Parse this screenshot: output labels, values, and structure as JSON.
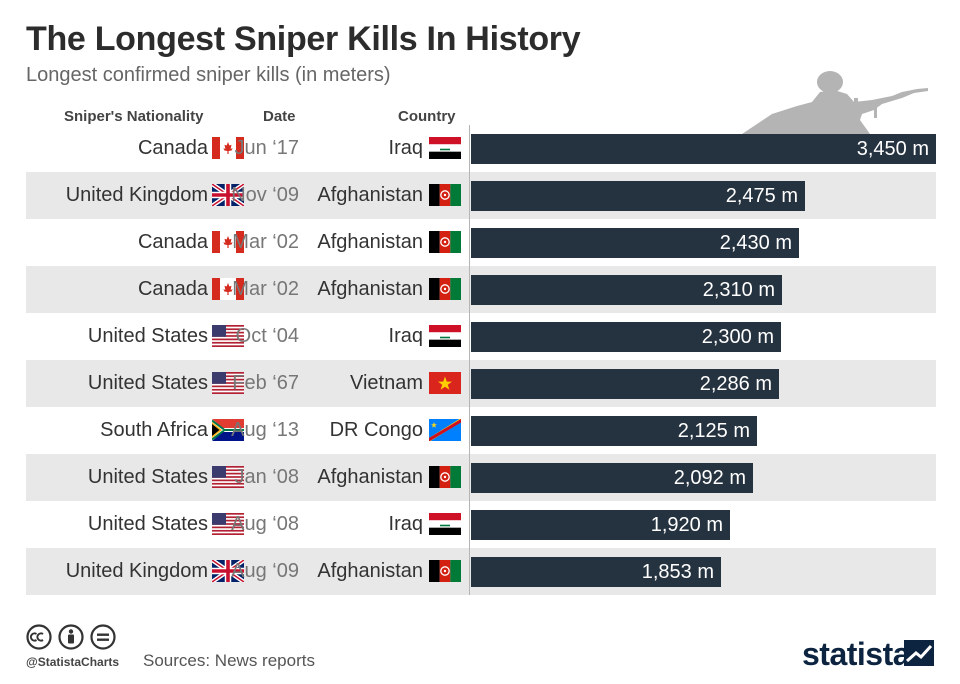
{
  "header": {
    "title": "The Longest Sniper Kills In History",
    "subtitle": "Longest confirmed sniper kills (in meters)"
  },
  "columns": {
    "nationality": "Sniper's Nationality",
    "date": "Date",
    "country": "Country"
  },
  "colors": {
    "bar": "#25323f",
    "row_shade": "#e8e8e8",
    "brand": "#0d2440"
  },
  "chart_data": {
    "type": "bar",
    "orientation": "horizontal",
    "unit": "m",
    "xlim": [
      0,
      3450
    ],
    "grid": false,
    "rows": [
      {
        "nationality": "Canada",
        "nat_flag": "canada-flag",
        "date": "Jun ‘17",
        "country": "Iraq",
        "country_flag": "iraq-flag",
        "value": 3450,
        "label": "3,450 m"
      },
      {
        "nationality": "United Kingdom",
        "nat_flag": "uk-flag",
        "date": "Nov ‘09",
        "country": "Afghanistan",
        "country_flag": "afghanistan-flag",
        "value": 2475,
        "label": "2,475 m"
      },
      {
        "nationality": "Canada",
        "nat_flag": "canada-flag",
        "date": "Mar ‘02",
        "country": "Afghanistan",
        "country_flag": "afghanistan-flag",
        "value": 2430,
        "label": "2,430 m"
      },
      {
        "nationality": "Canada",
        "nat_flag": "canada-flag",
        "date": "Mar ‘02",
        "country": "Afghanistan",
        "country_flag": "afghanistan-flag",
        "value": 2310,
        "label": "2,310 m"
      },
      {
        "nationality": "United States",
        "nat_flag": "usa-flag",
        "date": "Oct ‘04",
        "country": "Iraq",
        "country_flag": "iraq-flag",
        "value": 2300,
        "label": "2,300 m"
      },
      {
        "nationality": "United States",
        "nat_flag": "usa-flag",
        "date": "Feb ‘67",
        "country": "Vietnam",
        "country_flag": "vietnam-flag",
        "value": 2286,
        "label": "2,286 m"
      },
      {
        "nationality": "South Africa",
        "nat_flag": "south-africa-flag",
        "date": "Aug ‘13",
        "country": "DR Congo",
        "country_flag": "dr-congo-flag",
        "value": 2125,
        "label": "2,125 m"
      },
      {
        "nationality": "United States",
        "nat_flag": "usa-flag",
        "date": "Jan ‘08",
        "country": "Afghanistan",
        "country_flag": "afghanistan-flag",
        "value": 2092,
        "label": "2,092 m"
      },
      {
        "nationality": "United States",
        "nat_flag": "usa-flag",
        "date": "Aug ‘08",
        "country": "Iraq",
        "country_flag": "iraq-flag",
        "value": 1920,
        "label": "1,920 m"
      },
      {
        "nationality": "United Kingdom",
        "nat_flag": "uk-flag",
        "date": "Aug ‘09",
        "country": "Afghanistan",
        "country_flag": "afghanistan-flag",
        "value": 1853,
        "label": "1,853 m"
      }
    ]
  },
  "footer": {
    "handle": "@StatistaCharts",
    "source": "Sources: News reports",
    "brand": "statista",
    "icons": [
      "cc-icon",
      "attribution-icon",
      "no-derivatives-icon"
    ]
  }
}
